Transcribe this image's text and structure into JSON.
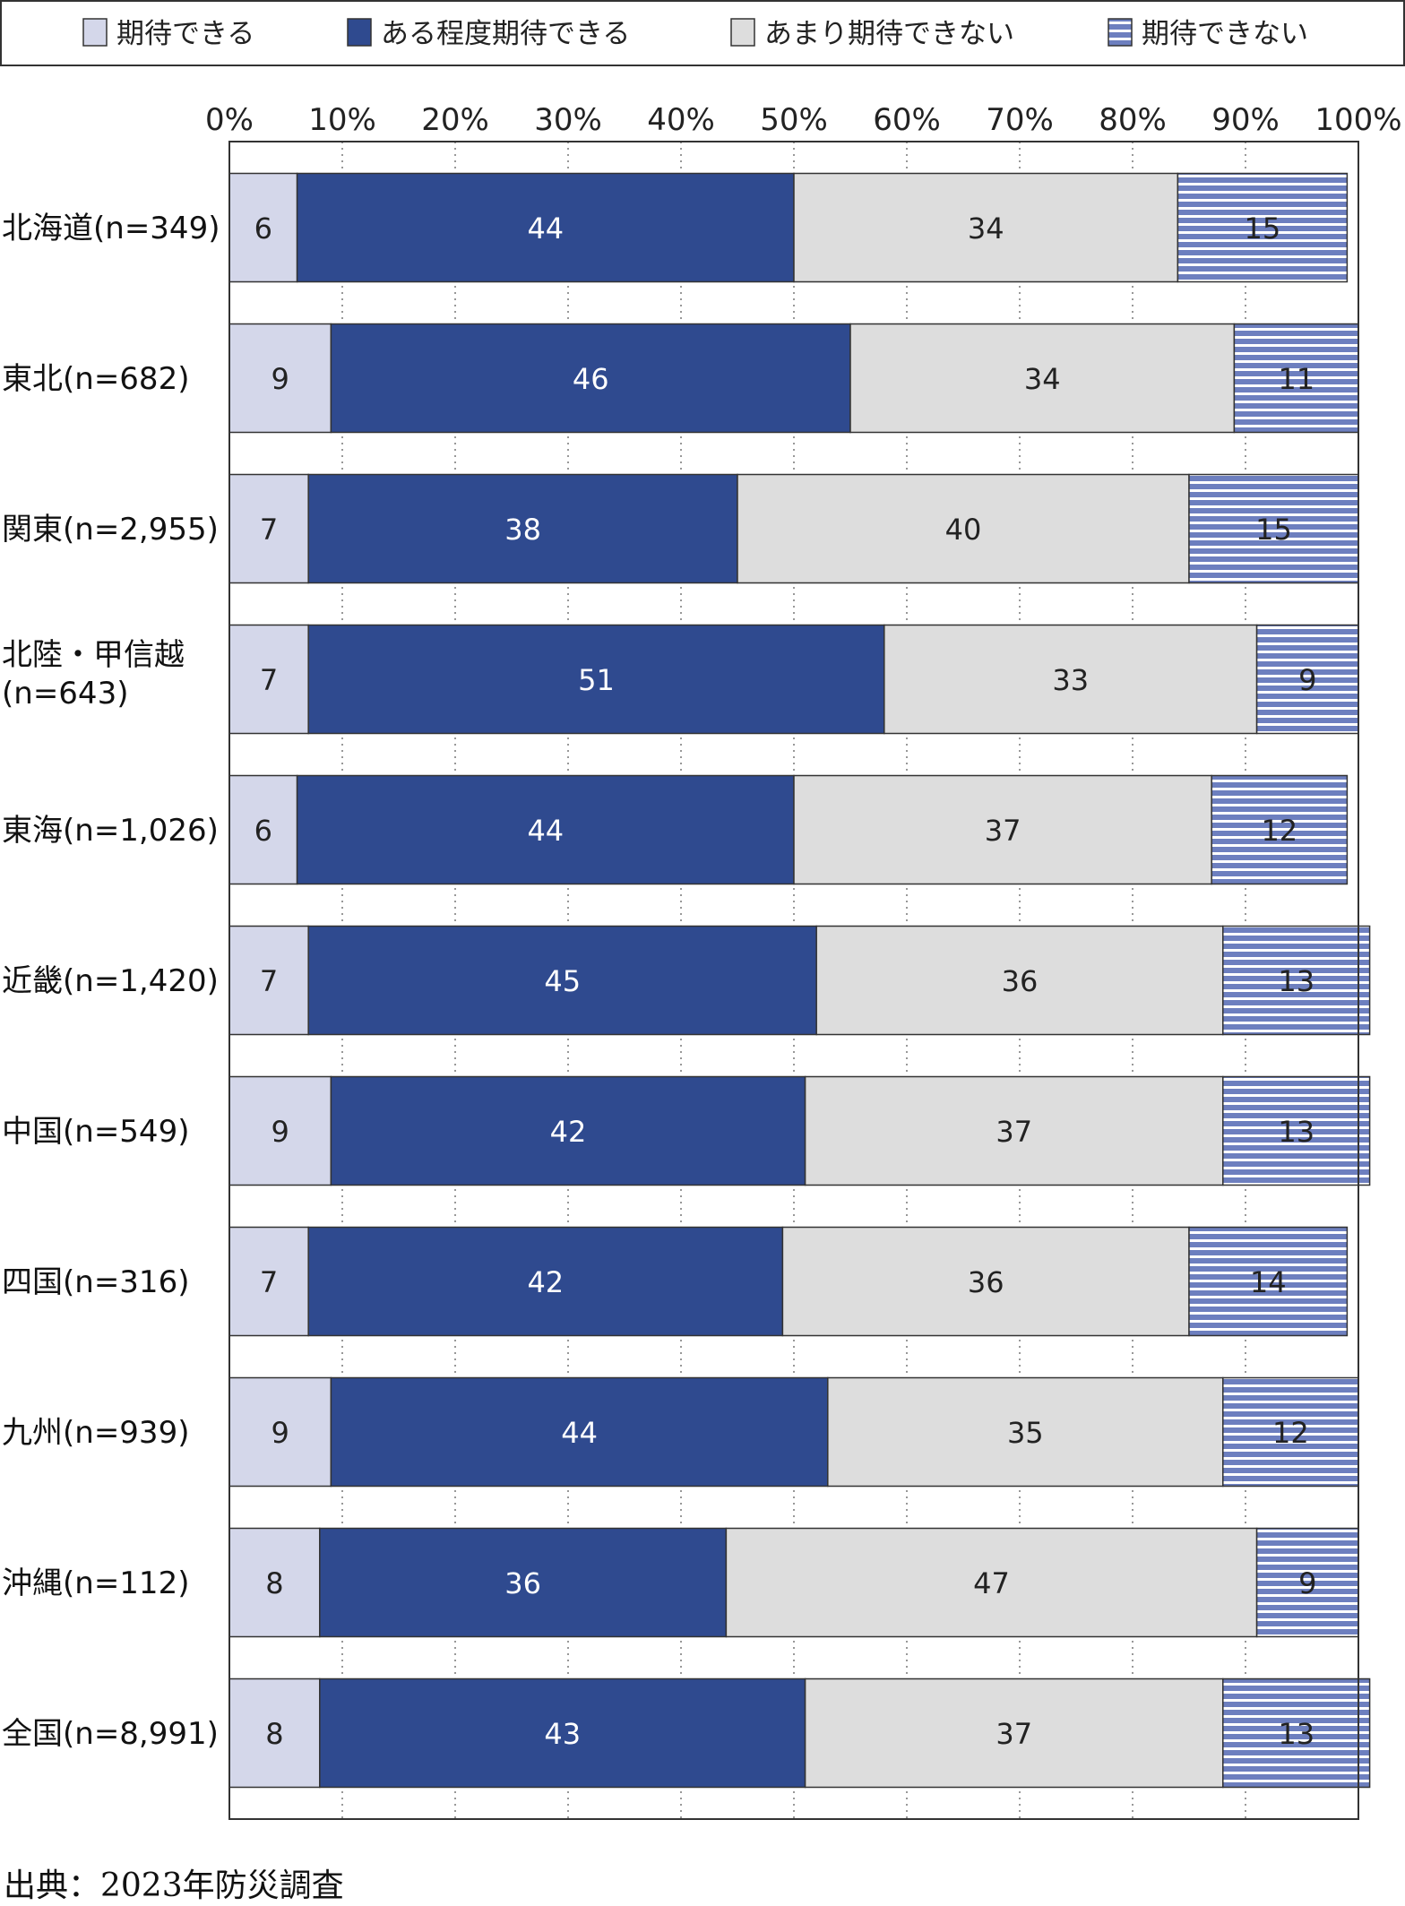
{
  "chart_data": {
    "type": "bar",
    "orientation": "horizontal",
    "stacked": true,
    "x_unit": "%",
    "xlim": [
      0,
      100
    ],
    "x_ticks": [
      "0%",
      "10%",
      "20%",
      "30%",
      "40%",
      "50%",
      "60%",
      "70%",
      "80%",
      "90%",
      "100%"
    ],
    "categories": [
      "北海道(n=349)",
      "東北(n=682)",
      "関東(n=2,955)",
      "北陸・甲信越(n=643)",
      "東海(n=1,026)",
      "近畿(n=1,420)",
      "中国(n=549)",
      "四国(n=316)",
      "九州(n=939)",
      "沖縄(n=112)",
      "全国(n=8,991)"
    ],
    "category_lines": [
      [
        "北海道(n=349)"
      ],
      [
        "東北(n=682)"
      ],
      [
        "関東(n=2,955)"
      ],
      [
        "北陸・甲信越",
        "(n=643)"
      ],
      [
        "東海(n=1,026)"
      ],
      [
        "近畿(n=1,420)"
      ],
      [
        "中国(n=549)"
      ],
      [
        "四国(n=316)"
      ],
      [
        "九州(n=939)"
      ],
      [
        "沖縄(n=112)"
      ],
      [
        "全国(n=8,991)"
      ]
    ],
    "series": [
      {
        "name": "期待できる",
        "color": "#d4d7ea",
        "pattern": "solid",
        "label_color": "#222222",
        "values": [
          6,
          9,
          7,
          7,
          6,
          7,
          9,
          7,
          9,
          8,
          8
        ]
      },
      {
        "name": "ある程度期待できる",
        "color": "#2f4a8f",
        "pattern": "solid",
        "label_color": "#ffffff",
        "values": [
          44,
          46,
          38,
          51,
          44,
          45,
          42,
          42,
          44,
          36,
          43
        ]
      },
      {
        "name": "あまり期待できない",
        "color": "#dddddd",
        "pattern": "solid",
        "label_color": "#222222",
        "values": [
          34,
          34,
          40,
          33,
          37,
          36,
          37,
          36,
          35,
          47,
          37
        ]
      },
      {
        "name": "期待できない",
        "color": "#6d7fbf",
        "pattern": "horizontal-stripes",
        "stripe_color": "#ffffff",
        "label_color": "#222222",
        "values": [
          15,
          11,
          15,
          9,
          12,
          13,
          13,
          14,
          12,
          9,
          13
        ]
      }
    ],
    "legend_position": "top",
    "grid": "vertical-dotted"
  },
  "source": "出典：2023年防災調査"
}
